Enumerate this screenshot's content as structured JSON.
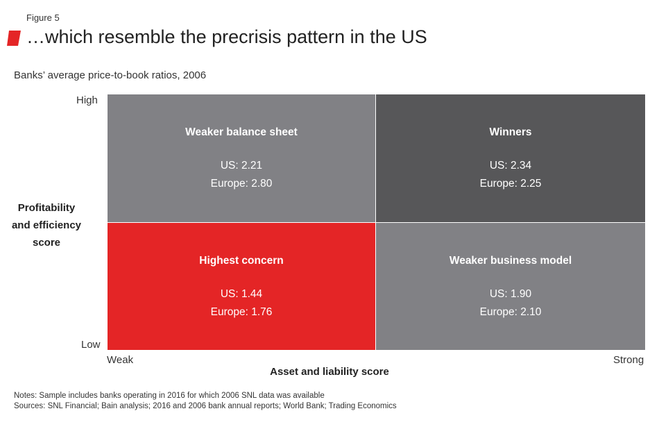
{
  "figure_label": "Figure 5",
  "colors": {
    "accent": "#e42526",
    "mid_gray": "#818185",
    "dark_gray": "#575759"
  },
  "chart_data": {
    "type": "table",
    "title": "…which resemble the precrisis pattern in the US",
    "subtitle": "Banks’ average price-to-book ratios, 2006",
    "xlabel": "Asset and liability score",
    "ylabel_lines": [
      "Profitability",
      "and efficiency",
      "score"
    ],
    "x_ticks": [
      "Weak",
      "Strong"
    ],
    "y_ticks": [
      "High",
      "Low"
    ],
    "quadrants": [
      {
        "name": "Weaker balance sheet",
        "x": "Weak",
        "y": "High",
        "us_label": "US: 2.21",
        "europe_label": "Europe: 2.80",
        "us": 2.21,
        "europe": 2.8
      },
      {
        "name": "Winners",
        "x": "Strong",
        "y": "High",
        "us_label": "US: 2.34",
        "europe_label": "Europe: 2.25",
        "us": 2.34,
        "europe": 2.25
      },
      {
        "name": "Highest concern",
        "x": "Weak",
        "y": "Low",
        "us_label": "US: 1.44",
        "europe_label": "Europe: 1.76",
        "us": 1.44,
        "europe": 1.76
      },
      {
        "name": "Weaker business model",
        "x": "Strong",
        "y": "Low",
        "us_label": "US: 1.90",
        "europe_label": "Europe: 2.10",
        "us": 1.9,
        "europe": 2.1
      }
    ]
  },
  "notes": {
    "line1": "Notes: Sample includes banks operating in 2016 for which 2006 SNL data was available",
    "line2": "Sources: SNL Financial; Bain analysis; 2016 and 2006 bank annual reports; World Bank; Trading Economics"
  }
}
